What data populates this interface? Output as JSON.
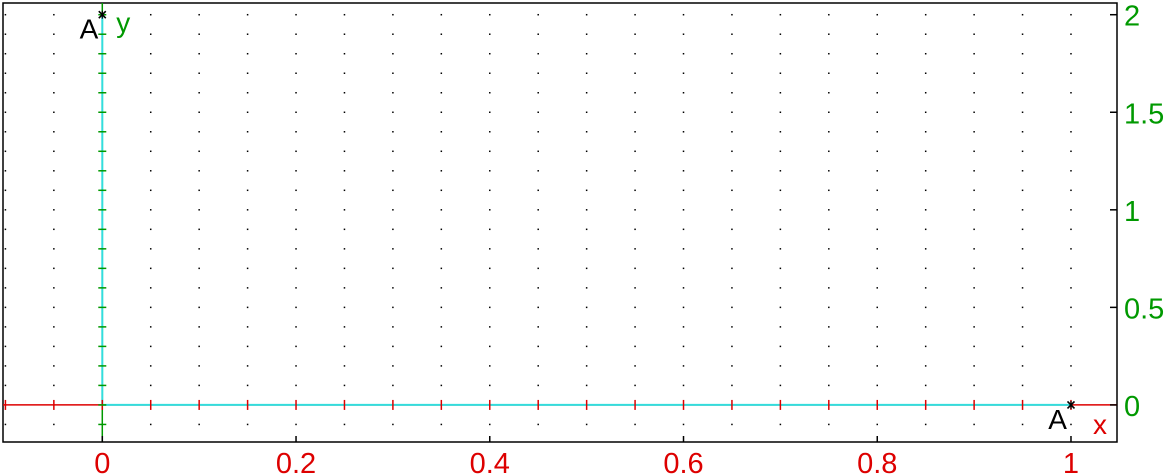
{
  "chart_data": {
    "type": "scatter",
    "title": "",
    "xlabel": "x",
    "ylabel": "y",
    "xlim": [
      -0.1025,
      1.0475
    ],
    "ylim": [
      -0.19,
      2.06
    ],
    "grid": true,
    "grid_step": {
      "x": 0.05,
      "y": 0.1
    },
    "x_ticks": [
      {
        "value": 0,
        "label": "0"
      },
      {
        "value": 0.2,
        "label": "0.2"
      },
      {
        "value": 0.4,
        "label": "0.4"
      },
      {
        "value": 0.6,
        "label": "0.6"
      },
      {
        "value": 0.8,
        "label": "0.8"
      },
      {
        "value": 1,
        "label": "1"
      }
    ],
    "y_ticks": [
      {
        "value": 0,
        "label": "0"
      },
      {
        "value": 0.5,
        "label": "0.5"
      },
      {
        "value": 1,
        "label": "1"
      },
      {
        "value": 1.5,
        "label": "1.5"
      },
      {
        "value": 2,
        "label": "2"
      }
    ],
    "points": [
      {
        "name": "A",
        "x": 0,
        "y": 2
      },
      {
        "name": "A",
        "x": 1,
        "y": 0
      }
    ],
    "segments": [
      {
        "from": [
          0,
          0
        ],
        "to": [
          0,
          2
        ]
      },
      {
        "from": [
          0,
          0
        ],
        "to": [
          1,
          0
        ]
      }
    ],
    "colors": {
      "x_axis": "#dd0000",
      "y_axis": "#009900",
      "segment": "#33dddd",
      "grid_dot": "#000000",
      "point": "#000000"
    }
  }
}
